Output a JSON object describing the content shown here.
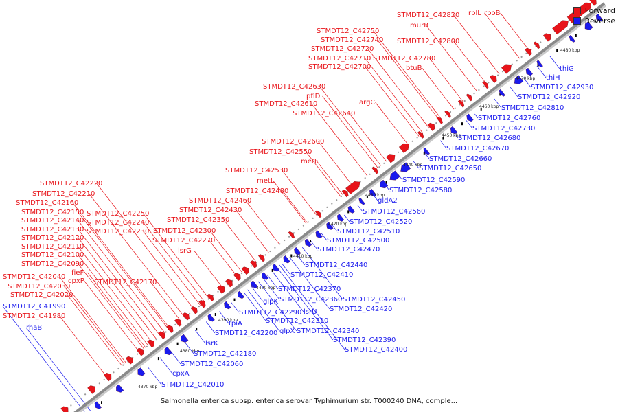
{
  "caption": "Salmonella enterica subsp. enterica serovar Typhimurium str. T000240 DNA, comple...",
  "legend": [
    {
      "label": "Forward",
      "color": "#e8141a"
    },
    {
      "label": "Reverse",
      "color": "#1a1aee"
    }
  ],
  "colors": {
    "forward": "#e8141a",
    "reverse": "#1a1aee",
    "backbone": "#8a8a8a",
    "ticks": "#000000"
  },
  "scale_ticks": [
    "4370 kbp",
    "4380 kbp",
    "4390 kbp",
    "4400 kbp",
    "4410 kbp",
    "4420 kbp",
    "4430 kbp",
    "4440 kbp",
    "4450 kbp",
    "4460 kbp",
    "4470 kbp",
    "4480 kbp"
  ],
  "forward_labels": [
    "rpoB",
    "rplL",
    "STMDT12_C42820",
    "murB",
    "STMDT12_C42800",
    "STMDT12_C42750",
    "STMDT12_C42740",
    "STMDT12_C42720",
    "STMDT12_C42710",
    "STMDT12_C42780",
    "STMDT12_C42700",
    "btuB",
    "STMDT12_C42630",
    "pflD",
    "argC",
    "STMDT12_C42610",
    "STMDT12_C42640",
    "STMDT12_C42600",
    "STMDT12_C42550",
    "metF",
    "STMDT12_C42530",
    "metL",
    "STMDT12_C42480",
    "STMDT12_C42220",
    "STMDT12_C42460",
    "STMDT12_C42210",
    "STMDT12_C42430",
    "STMDT12_C42160",
    "STMDT12_C42250",
    "STMDT12_C42150",
    "STMDT12_C42240",
    "STMDT12_C42350",
    "STMDT12_C42140",
    "STMDT12_C42230",
    "STMDT12_C42300",
    "STMDT12_C42130",
    "STMDT12_C42270",
    "STMDT12_C42120",
    "lsrG",
    "STMDT12_C42110",
    "STMDT12_C42100",
    "STMDT12_C42090",
    "fieF",
    "STMDT12_C42040",
    "cpxP",
    "STMDT12_C42170",
    "STMDT12_C42030",
    "STMDT12_C42020",
    "STMDT12_C41980"
  ],
  "reverse_labels": [
    "thiG",
    "thiH",
    "STMDT12_C42930",
    "STMDT12_C42920",
    "STMDT12_C42810",
    "STMDT12_C42760",
    "STMDT12_C42730",
    "STMDT12_C42680",
    "STMDT12_C42670",
    "STMDT12_C42660",
    "STMDT12_C42650",
    "STMDT12_C42590",
    "STMDT12_C42580",
    "gldA2",
    "STMDT12_C42560",
    "STMDT12_C42520",
    "STMDT12_C42510",
    "STMDT12_C42500",
    "STMDT12_C42470",
    "STMDT12_C42440",
    "STMDT12_C42410",
    "STMDT12_C42370",
    "glpK",
    "STMDT12_C42360",
    "STMDT12_C42450",
    "STMDT12_C42420",
    "STMDT12_C42290",
    "lsrU",
    "tpiA",
    "STMDT12_C42310",
    "glpX",
    "STMDT12_C42200",
    "STMDT12_C42340",
    "STMDT12_C42390",
    "lsrK",
    "STMDT12_C42400",
    "STMDT12_C42180",
    "STMDT12_C42060",
    "cpxA",
    "STMDT12_C42010",
    "STMDT12_C41990",
    "rhaB"
  ]
}
